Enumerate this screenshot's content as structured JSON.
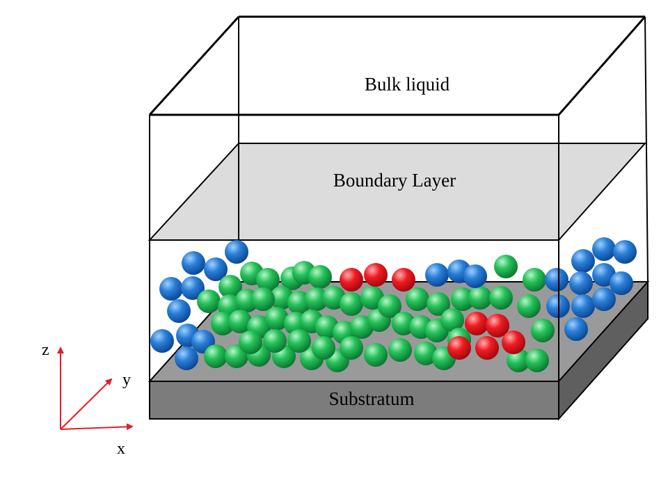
{
  "labels": {
    "bulk": "Bulk liquid",
    "boundary": "Boundary Layer",
    "substratum": "Substratum"
  },
  "axes": {
    "x": "x",
    "y": "y",
    "z": "z"
  },
  "colors": {
    "blue": "#1f6fc9",
    "green": "#1fb54e",
    "red": "#e8141b",
    "axis": "#e31e24",
    "boundary_fill": "#dcdcdc",
    "substratum_top": "#9a9a9a",
    "substratum_front": "#7c7c7c",
    "substratum_side": "#5f5f5f"
  }
}
